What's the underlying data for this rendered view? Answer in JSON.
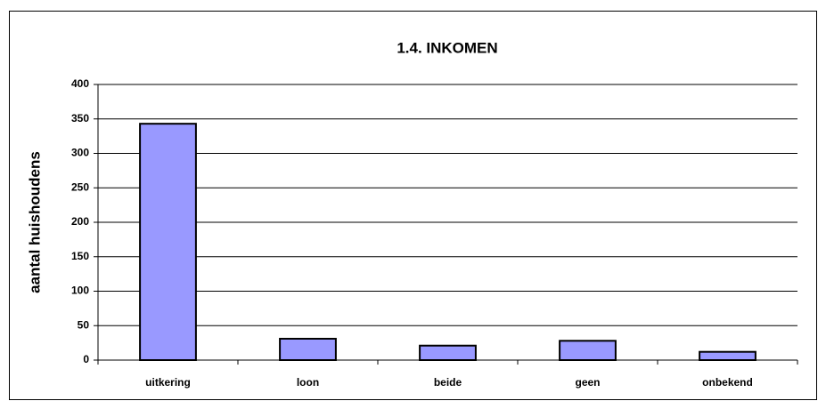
{
  "chart_data": {
    "type": "bar",
    "title": "1.4. INKOMEN",
    "y_label": "aantal huishoudens",
    "categories": [
      "uitkering",
      "loon",
      "beide",
      "geen",
      "onbekend"
    ],
    "values": [
      343,
      31,
      21,
      28,
      12
    ],
    "color": "#9999ff",
    "ylim": [
      0,
      400
    ],
    "yticks": [
      0,
      50,
      100,
      150,
      200,
      250,
      300,
      350,
      400
    ],
    "grid": true
  }
}
